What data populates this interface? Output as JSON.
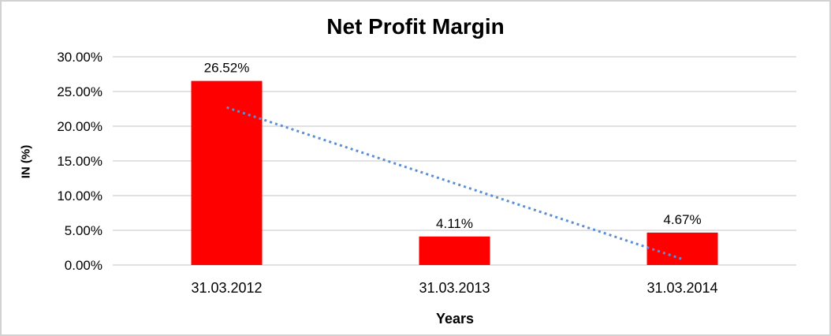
{
  "window": {
    "background": "#ffffff",
    "border_color": "#d2d2d2"
  },
  "chart_data": {
    "type": "bar",
    "title": "Net Profit Margin",
    "xlabel": "Years",
    "ylabel": "IN (%)",
    "categories": [
      "31.03.2012",
      "31.03.2013",
      "31.03.2014"
    ],
    "values": [
      26.52,
      4.11,
      4.67
    ],
    "data_labels": [
      "26.52%",
      "4.11%",
      "4.67%"
    ],
    "bar_color": "#ff0000",
    "ylim": [
      0,
      30
    ],
    "ytick_step": 5,
    "yticks": [
      "0.00%",
      "5.00%",
      "10.00%",
      "15.00%",
      "20.00%",
      "25.00%",
      "30.00%"
    ],
    "grid": true,
    "gridline_color": "#d0d0d0",
    "legend": "none",
    "trendline": {
      "type": "linear",
      "style": "dotted",
      "color": "#5b8fd4",
      "start_value": 22.7,
      "end_value": 0.85
    }
  }
}
